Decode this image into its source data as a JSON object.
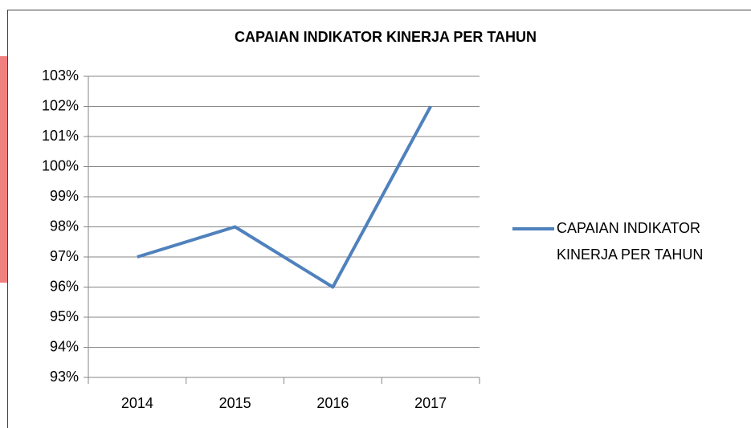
{
  "chart_data": {
    "type": "line",
    "title": "CAPAIAN INDIKATOR KINERJA PER TAHUN",
    "categories": [
      "2014",
      "2015",
      "2016",
      "2017"
    ],
    "series": [
      {
        "name": "CAPAIAN INDIKATOR KINERJA PER TAHUN",
        "color": "#4f81bd",
        "values": [
          97,
          98,
          96,
          102
        ]
      }
    ],
    "ylim": [
      93,
      103
    ],
    "yticks": [
      {
        "value": 93,
        "label": "93%"
      },
      {
        "value": 94,
        "label": "94%"
      },
      {
        "value": 95,
        "label": "95%"
      },
      {
        "value": 96,
        "label": "96%"
      },
      {
        "value": 97,
        "label": "97%"
      },
      {
        "value": 98,
        "label": "98%"
      },
      {
        "value": 99,
        "label": "99%"
      },
      {
        "value": 100,
        "label": "100%"
      },
      {
        "value": 101,
        "label": "101%"
      },
      {
        "value": 102,
        "label": "102%"
      },
      {
        "value": 103,
        "label": "103%"
      }
    ],
    "grid": true,
    "legend": "right"
  }
}
